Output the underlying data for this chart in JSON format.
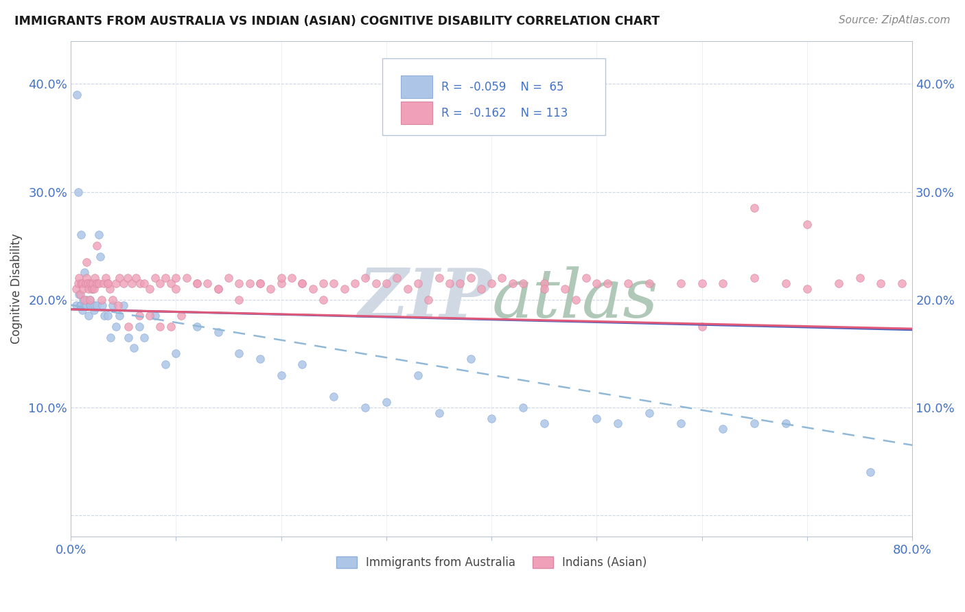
{
  "title": "IMMIGRANTS FROM AUSTRALIA VS INDIAN (ASIAN) COGNITIVE DISABILITY CORRELATION CHART",
  "source": "Source: ZipAtlas.com",
  "ylabel": "Cognitive Disability",
  "legend_r1": "-0.059",
  "legend_n1": "65",
  "legend_r2": "-0.162",
  "legend_n2": "113",
  "color_blue": "#adc6e8",
  "color_blue_edge": "#90afd8",
  "color_pink": "#f0a0b8",
  "color_pink_edge": "#d888a0",
  "color_trend_blue_solid": "#4060c0",
  "color_trend_pink_solid": "#e05878",
  "color_trend_blue_dash": "#90b8d8",
  "xlim": [
    0.0,
    0.8
  ],
  "ylim": [
    -0.02,
    0.44
  ],
  "ytick_vals": [
    0.0,
    0.1,
    0.2,
    0.3,
    0.4
  ],
  "ytick_labels": [
    "",
    "10.0%",
    "20.0%",
    "30.0%",
    "40.0%"
  ],
  "xtick_vals": [
    0.0,
    0.1,
    0.2,
    0.3,
    0.4,
    0.5,
    0.6,
    0.7,
    0.8
  ],
  "xtick_labels": [
    "0.0%",
    "",
    "",
    "",
    "",
    "",
    "",
    "",
    "80.0%"
  ],
  "watermark_zip_color": "#d0d8e4",
  "watermark_atlas_color": "#b0c8b8",
  "aus_x": [
    0.005,
    0.006,
    0.007,
    0.008,
    0.009,
    0.01,
    0.01,
    0.011,
    0.012,
    0.013,
    0.013,
    0.014,
    0.015,
    0.015,
    0.016,
    0.017,
    0.018,
    0.018,
    0.019,
    0.02,
    0.021,
    0.022,
    0.023,
    0.024,
    0.025,
    0.027,
    0.028,
    0.03,
    0.032,
    0.035,
    0.038,
    0.04,
    0.043,
    0.046,
    0.05,
    0.055,
    0.06,
    0.065,
    0.07,
    0.08,
    0.09,
    0.1,
    0.12,
    0.14,
    0.16,
    0.18,
    0.2,
    0.22,
    0.25,
    0.28,
    0.3,
    0.33,
    0.35,
    0.38,
    0.4,
    0.43,
    0.45,
    0.5,
    0.52,
    0.55,
    0.58,
    0.62,
    0.65,
    0.68,
    0.76
  ],
  "aus_y": [
    0.195,
    0.39,
    0.3,
    0.205,
    0.195,
    0.195,
    0.26,
    0.19,
    0.2,
    0.195,
    0.225,
    0.195,
    0.2,
    0.195,
    0.215,
    0.185,
    0.195,
    0.2,
    0.195,
    0.21,
    0.195,
    0.19,
    0.195,
    0.215,
    0.195,
    0.26,
    0.24,
    0.195,
    0.185,
    0.185,
    0.165,
    0.195,
    0.175,
    0.185,
    0.195,
    0.165,
    0.155,
    0.175,
    0.165,
    0.185,
    0.14,
    0.15,
    0.175,
    0.17,
    0.15,
    0.145,
    0.13,
    0.14,
    0.11,
    0.1,
    0.105,
    0.13,
    0.095,
    0.145,
    0.09,
    0.1,
    0.085,
    0.09,
    0.085,
    0.095,
    0.085,
    0.08,
    0.085,
    0.085,
    0.04
  ],
  "ind_x": [
    0.005,
    0.007,
    0.008,
    0.009,
    0.01,
    0.011,
    0.012,
    0.013,
    0.014,
    0.015,
    0.016,
    0.017,
    0.018,
    0.019,
    0.02,
    0.021,
    0.022,
    0.023,
    0.025,
    0.027,
    0.029,
    0.031,
    0.033,
    0.035,
    0.037,
    0.04,
    0.043,
    0.046,
    0.05,
    0.054,
    0.058,
    0.062,
    0.066,
    0.07,
    0.075,
    0.08,
    0.085,
    0.09,
    0.095,
    0.1,
    0.11,
    0.12,
    0.13,
    0.14,
    0.15,
    0.16,
    0.17,
    0.18,
    0.19,
    0.2,
    0.21,
    0.22,
    0.23,
    0.24,
    0.25,
    0.27,
    0.29,
    0.31,
    0.33,
    0.35,
    0.37,
    0.39,
    0.41,
    0.43,
    0.45,
    0.47,
    0.49,
    0.51,
    0.53,
    0.55,
    0.58,
    0.6,
    0.62,
    0.65,
    0.68,
    0.7,
    0.73,
    0.75,
    0.77,
    0.79,
    0.015,
    0.025,
    0.035,
    0.045,
    0.055,
    0.065,
    0.075,
    0.085,
    0.095,
    0.105,
    0.1,
    0.12,
    0.14,
    0.16,
    0.18,
    0.2,
    0.22,
    0.24,
    0.26,
    0.28,
    0.3,
    0.32,
    0.34,
    0.36,
    0.38,
    0.4,
    0.42,
    0.45,
    0.48,
    0.5,
    0.6,
    0.65,
    0.7
  ],
  "ind_y": [
    0.21,
    0.215,
    0.22,
    0.205,
    0.215,
    0.215,
    0.21,
    0.2,
    0.215,
    0.22,
    0.215,
    0.21,
    0.2,
    0.215,
    0.21,
    0.215,
    0.21,
    0.22,
    0.215,
    0.215,
    0.2,
    0.215,
    0.22,
    0.215,
    0.21,
    0.2,
    0.215,
    0.22,
    0.215,
    0.22,
    0.215,
    0.22,
    0.215,
    0.215,
    0.21,
    0.22,
    0.215,
    0.22,
    0.215,
    0.21,
    0.22,
    0.215,
    0.215,
    0.21,
    0.22,
    0.215,
    0.215,
    0.215,
    0.21,
    0.215,
    0.22,
    0.215,
    0.21,
    0.2,
    0.215,
    0.215,
    0.215,
    0.22,
    0.215,
    0.22,
    0.215,
    0.21,
    0.22,
    0.215,
    0.215,
    0.21,
    0.22,
    0.215,
    0.215,
    0.215,
    0.215,
    0.215,
    0.215,
    0.22,
    0.215,
    0.21,
    0.215,
    0.22,
    0.215,
    0.215,
    0.235,
    0.25,
    0.215,
    0.195,
    0.175,
    0.185,
    0.185,
    0.175,
    0.175,
    0.185,
    0.22,
    0.215,
    0.21,
    0.2,
    0.215,
    0.22,
    0.215,
    0.215,
    0.21,
    0.22,
    0.215,
    0.21,
    0.2,
    0.215,
    0.22,
    0.215,
    0.215,
    0.21,
    0.2,
    0.215,
    0.175,
    0.285,
    0.27
  ]
}
